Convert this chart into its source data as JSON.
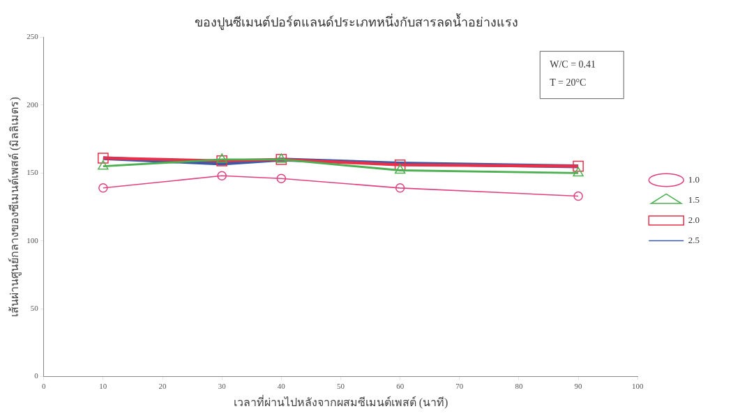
{
  "chart_data": {
    "type": "line",
    "title": "ของปูนซีเมนต์ปอร์ตแลนด์ประเภทหนึ่งกับสารลดน้ำอย่างแรง",
    "xlabel": "เวลาที่ผ่านไปหลังจากผสมซีเมนต์เพสต์ (นาที)",
    "ylabel": "เส้นผ่านศูนย์กลางของซีเมนต์เพสต์ (มิลลิเมตร)",
    "x": [
      10,
      30,
      40,
      60,
      90
    ],
    "series": [
      {
        "name": "1.0",
        "color": "#e0407f",
        "marker": "circle",
        "values": [
          139,
          148,
          146,
          139,
          133
        ]
      },
      {
        "name": "1.5",
        "color": "#4caf50",
        "marker": "triangle",
        "values": [
          155,
          160,
          160,
          152,
          150
        ]
      },
      {
        "name": "2.0",
        "color": "#e8304a",
        "marker": "square",
        "values": [
          161,
          159,
          160,
          156,
          155
        ]
      },
      {
        "name": "2.5",
        "color": "#3a5aa8",
        "marker": "none",
        "values": [
          161,
          157,
          160,
          157,
          155
        ]
      }
    ],
    "xlim": [
      0,
      100
    ],
    "xticks": [
      0,
      10,
      20,
      30,
      40,
      50,
      60,
      70,
      80,
      90,
      100
    ],
    "ylim": [
      0,
      250
    ],
    "yticks": [
      0,
      50,
      100,
      150,
      200,
      250
    ],
    "grid": false,
    "legend": "right",
    "line_style": "solid",
    "annotations": [
      "W/C = 0.41",
      "T = 20°C"
    ]
  }
}
